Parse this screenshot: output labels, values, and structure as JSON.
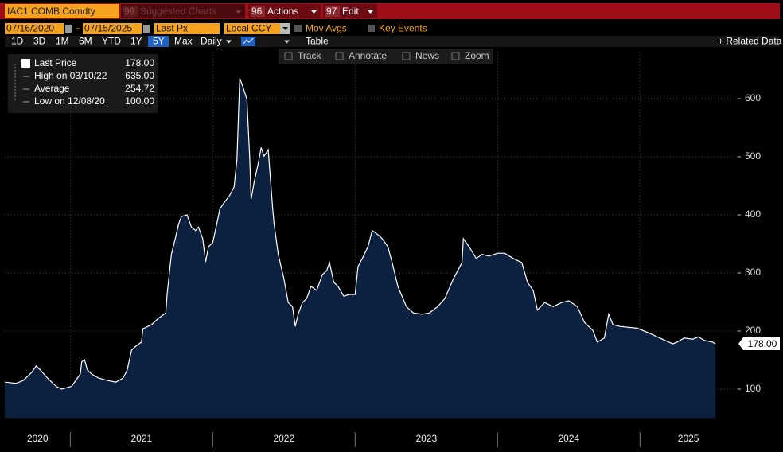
{
  "toolbar": {
    "security": "IAC1 COMB Comdty",
    "buttons": [
      {
        "number": "99",
        "label": "Suggested Charts"
      },
      {
        "number": "96",
        "label": "Actions"
      },
      {
        "number": "97",
        "label": "Edit"
      }
    ]
  },
  "controls": {
    "start_date": "07/16/2020",
    "end_date": "07/15/2025",
    "field": "Last Px",
    "currency": "Local CCY",
    "mov_avgs": "Mov Avgs",
    "key_events": "Key Events"
  },
  "periods": [
    "1D",
    "3D",
    "1M",
    "6M",
    "YTD",
    "1Y",
    "5Y",
    "Max"
  ],
  "selected_period": "5Y",
  "frequency": "Daily",
  "table": "Table",
  "related": "+ Related Data",
  "chart_tools": [
    "Track",
    "Annotate",
    "News",
    "Zoom"
  ],
  "chart_data": {
    "type": "area",
    "stats": [
      {
        "label": "Last Price",
        "value": "178.00"
      },
      {
        "label": "High on 03/10/22",
        "value": "635.00"
      },
      {
        "label": "Average",
        "value": "254.72"
      },
      {
        "label": "Low on 12/08/20",
        "value": "100.00"
      }
    ],
    "series": [
      {
        "color": "#ffffff",
        "fill": "#0c2040",
        "x": [
          2020.54,
          2020.62,
          2020.67,
          2020.73,
          2020.76,
          2020.79,
          2020.84,
          2020.9,
          2020.94,
          2021.01,
          2021.07,
          2021.08,
          2021.1,
          2021.12,
          2021.15,
          2021.2,
          2021.26,
          2021.32,
          2021.37,
          2021.4,
          2021.43,
          2021.46,
          2021.5,
          2021.51,
          2021.57,
          2021.62,
          2021.67,
          2021.68,
          2021.71,
          2021.74,
          2021.76,
          2021.78,
          2021.82,
          2021.85,
          2021.88,
          2021.9,
          2021.93,
          2021.95,
          2021.97,
          2022.0,
          2022.03,
          2022.05,
          2022.08,
          2022.12,
          2022.15,
          2022.17,
          2022.19,
          2022.21,
          2022.24,
          2022.26,
          2022.27,
          2022.29,
          2022.32,
          2022.34,
          2022.36,
          2022.39,
          2022.42,
          2022.43,
          2022.46,
          2022.5,
          2022.53,
          2022.56,
          2022.58,
          2022.6,
          2022.63,
          2022.66,
          2022.69,
          2022.73,
          2022.77,
          2022.8,
          2022.82,
          2022.85,
          2022.88,
          2022.92,
          2022.96,
          2023.0,
          2023.02,
          2023.05,
          2023.09,
          2023.12,
          2023.16,
          2023.19,
          2023.23,
          2023.26,
          2023.3,
          2023.36,
          2023.41,
          2023.47,
          2023.52,
          2023.58,
          2023.63,
          2023.69,
          2023.75,
          2023.76,
          2023.8,
          2023.85,
          2023.89,
          2023.94,
          2024.0,
          2024.05,
          2024.11,
          2024.17,
          2024.21,
          2024.25,
          2024.28,
          2024.33,
          2024.39,
          2024.45,
          2024.5,
          2024.56,
          2024.61,
          2024.67,
          2024.7,
          2024.75,
          2024.78,
          2024.81,
          2024.86,
          2024.98,
          2025.06,
          2025.14,
          2025.23,
          2025.26,
          2025.31,
          2025.37,
          2025.41,
          2025.45,
          2025.51,
          2025.53
        ],
        "values": [
          112,
          110,
          115,
          129,
          140,
          133,
          119,
          105,
          100,
          105,
          126,
          147,
          151,
          133,
          126,
          119,
          115,
          112,
          119,
          133,
          167,
          174,
          181,
          204,
          211,
          222,
          231,
          263,
          332,
          362,
          384,
          397,
          400,
          379,
          373,
          379,
          359,
          319,
          345,
          352,
          386,
          410,
          421,
          434,
          448,
          496,
          635,
          622,
          599,
          496,
          427,
          455,
          489,
          516,
          501,
          512,
          414,
          386,
          332,
          290,
          249,
          242,
          208,
          229,
          249,
          256,
          277,
          270,
          297,
          304,
          318,
          284,
          277,
          260,
          263,
          263,
          311,
          325,
          345,
          373,
          366,
          359,
          345,
          318,
          277,
          242,
          231,
          229,
          231,
          242,
          256,
          290,
          318,
          359,
          345,
          325,
          332,
          329,
          334,
          334,
          325,
          318,
          284,
          270,
          236,
          249,
          242,
          249,
          252,
          242,
          215,
          201,
          181,
          188,
          229,
          211,
          208,
          205,
          197,
          188,
          178,
          181,
          188,
          186,
          190,
          184,
          181,
          178
        ]
      }
    ],
    "xlim": [
      2020.54,
      2025.68
    ],
    "xticks": [
      2020,
      2021,
      2022,
      2023,
      2024,
      2025
    ],
    "ylim": [
      50,
      680
    ],
    "yticks": [
      100,
      200,
      300,
      400,
      500,
      600
    ],
    "grid": true
  }
}
